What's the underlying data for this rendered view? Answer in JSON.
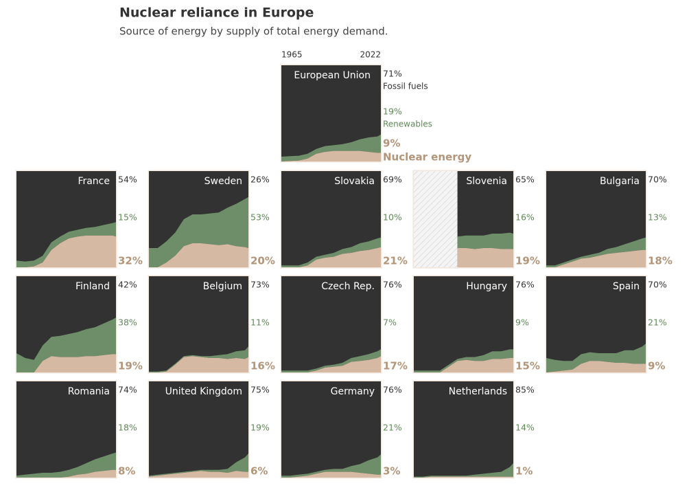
{
  "chart_data": {
    "type": "area",
    "title": "Nuclear reliance in Europe",
    "subtitle": "Source of energy by supply of total energy demand.",
    "x": [
      1965,
      1970,
      1975,
      1980,
      1985,
      1990,
      1995,
      2000,
      2005,
      2010,
      2015,
      2020,
      2022
    ],
    "xlim": [
      1965,
      2022
    ],
    "xticks": [
      1965,
      2022
    ],
    "ylim": [
      0,
      100
    ],
    "legend": {
      "fossil": "Fossil fuels",
      "renewables": "Renewables",
      "nuclear": "Nuclear energy"
    },
    "colors": {
      "fossil": "#323232",
      "renewables": "#6d8e68",
      "nuclear": "#d6b9a3",
      "fossil_text": "#333333",
      "renewables_text": "#5f8a57",
      "nuclear_text": "#b39579"
    },
    "panels": [
      {
        "name": "European Union",
        "fossil_label": "71%",
        "renewables_label": "19%",
        "nuclear_label": "9%",
        "nuclear": [
          0,
          0.5,
          1,
          3,
          8,
          10,
          11,
          11,
          11,
          11,
          10,
          9,
          9
        ],
        "renewables": [
          5,
          5,
          5,
          5,
          5,
          6,
          6,
          7,
          9,
          12,
          15,
          17,
          19
        ]
      },
      {
        "name": "France",
        "fossil_label": "54%",
        "renewables_label": "15%",
        "nuclear_label": "32%",
        "nuclear": [
          0,
          0,
          1,
          5,
          18,
          25,
          30,
          32,
          33,
          33,
          33,
          33,
          32
        ],
        "renewables": [
          7,
          6,
          6,
          7,
          8,
          7,
          7,
          7,
          8,
          9,
          11,
          13,
          15
        ]
      },
      {
        "name": "Sweden",
        "fossil_label": "26%",
        "renewables_label": "53%",
        "nuclear_label": "20%",
        "nuclear": [
          0,
          0,
          5,
          12,
          22,
          25,
          25,
          24,
          23,
          24,
          22,
          21,
          20
        ],
        "renewables": [
          20,
          20,
          22,
          24,
          28,
          30,
          30,
          32,
          34,
          38,
          44,
          50,
          53
        ]
      },
      {
        "name": "Slovakia",
        "fossil_label": "69%",
        "renewables_label": "10%",
        "nuclear_label": "21%",
        "nuclear": [
          0,
          0,
          0,
          2,
          8,
          10,
          11,
          14,
          15,
          17,
          18,
          20,
          21
        ],
        "renewables": [
          2,
          2,
          2,
          3,
          3,
          3,
          4,
          5,
          6,
          8,
          9,
          10,
          10
        ]
      },
      {
        "name": "Slovenia",
        "fossil_label": "65%",
        "renewables_label": "16%",
        "nuclear_label": "19%",
        "nuclear": [
          null,
          null,
          null,
          null,
          null,
          20,
          20,
          19,
          20,
          20,
          19,
          19,
          19
        ],
        "renewables": [
          null,
          null,
          null,
          null,
          null,
          12,
          13,
          14,
          13,
          15,
          16,
          17,
          16
        ]
      },
      {
        "name": "Bulgaria",
        "fossil_label": "70%",
        "renewables_label": "13%",
        "nuclear_label": "18%",
        "nuclear": [
          0,
          0,
          3,
          6,
          9,
          10,
          12,
          14,
          15,
          16,
          17,
          18,
          18
        ],
        "renewables": [
          2,
          2,
          2,
          2,
          2,
          3,
          3,
          5,
          6,
          8,
          10,
          12,
          13
        ]
      },
      {
        "name": "Finland",
        "fossil_label": "42%",
        "renewables_label": "38%",
        "nuclear_label": "19%",
        "nuclear": [
          0,
          0,
          0,
          12,
          17,
          16,
          16,
          16,
          17,
          17,
          18,
          19,
          19
        ],
        "renewables": [
          20,
          15,
          13,
          16,
          20,
          22,
          24,
          26,
          28,
          30,
          33,
          36,
          38
        ]
      },
      {
        "name": "Belgium",
        "fossil_label": "73%",
        "renewables_label": "11%",
        "nuclear_label": "16%",
        "nuclear": [
          0,
          0,
          1,
          8,
          16,
          17,
          16,
          15,
          15,
          14,
          15,
          14,
          16
        ],
        "renewables": [
          1,
          1,
          1,
          1,
          1,
          1,
          1,
          2,
          3,
          5,
          7,
          9,
          11
        ]
      },
      {
        "name": "Czech Rep.",
        "fossil_label": "76%",
        "renewables_label": "7%",
        "nuclear_label": "17%",
        "nuclear": [
          0,
          0,
          0,
          0,
          2,
          5,
          6,
          7,
          11,
          12,
          13,
          15,
          17
        ],
        "renewables": [
          2,
          2,
          2,
          2,
          2,
          2,
          2,
          3,
          4,
          5,
          6,
          7,
          7
        ]
      },
      {
        "name": "Hungary",
        "fossil_label": "76%",
        "renewables_label": "9%",
        "nuclear_label": "15%",
        "nuclear": [
          0,
          0,
          0,
          0,
          6,
          12,
          13,
          12,
          12,
          14,
          14,
          15,
          15
        ],
        "renewables": [
          2,
          2,
          2,
          2,
          2,
          2,
          3,
          4,
          6,
          8,
          8,
          9,
          9
        ]
      },
      {
        "name": "Spain",
        "fossil_label": "70%",
        "renewables_label": "21%",
        "nuclear_label": "9%",
        "nuclear": [
          0,
          1,
          2,
          3,
          9,
          12,
          12,
          11,
          10,
          10,
          9,
          9,
          9
        ],
        "renewables": [
          15,
          12,
          10,
          9,
          10,
          9,
          8,
          9,
          10,
          13,
          14,
          18,
          21
        ]
      },
      {
        "name": "Romania",
        "fossil_label": "74%",
        "renewables_label": "18%",
        "nuclear_label": "8%",
        "nuclear": [
          0,
          0,
          0,
          0,
          0,
          0,
          1,
          3,
          4,
          6,
          7,
          8,
          8
        ],
        "renewables": [
          2,
          3,
          4,
          5,
          5,
          6,
          7,
          8,
          11,
          13,
          15,
          17,
          18
        ]
      },
      {
        "name": "United Kingdom",
        "fossil_label": "75%",
        "renewables_label": "19%",
        "nuclear_label": "6%",
        "nuclear": [
          1,
          2,
          3,
          4,
          5,
          6,
          7,
          6,
          6,
          5,
          7,
          6,
          6
        ],
        "renewables": [
          1,
          1,
          1,
          1,
          1,
          1,
          1,
          2,
          2,
          4,
          9,
          15,
          19
        ]
      },
      {
        "name": "Germany",
        "fossil_label": "76%",
        "renewables_label": "21%",
        "nuclear_label": "3%",
        "nuclear": [
          0,
          0,
          1,
          2,
          4,
          6,
          6,
          6,
          6,
          5,
          4,
          3,
          3
        ],
        "renewables": [
          2,
          2,
          2,
          2,
          2,
          2,
          3,
          3,
          6,
          9,
          14,
          18,
          21
        ]
      },
      {
        "name": "Netherlands",
        "fossil_label": "85%",
        "renewables_label": "14%",
        "nuclear_label": "1%",
        "nuclear": [
          0,
          0,
          1,
          1,
          1,
          1,
          1,
          1,
          1,
          1,
          1,
          1,
          1
        ],
        "renewables": [
          1,
          1,
          1,
          1,
          1,
          1,
          1,
          2,
          3,
          4,
          5,
          10,
          14
        ]
      }
    ]
  }
}
